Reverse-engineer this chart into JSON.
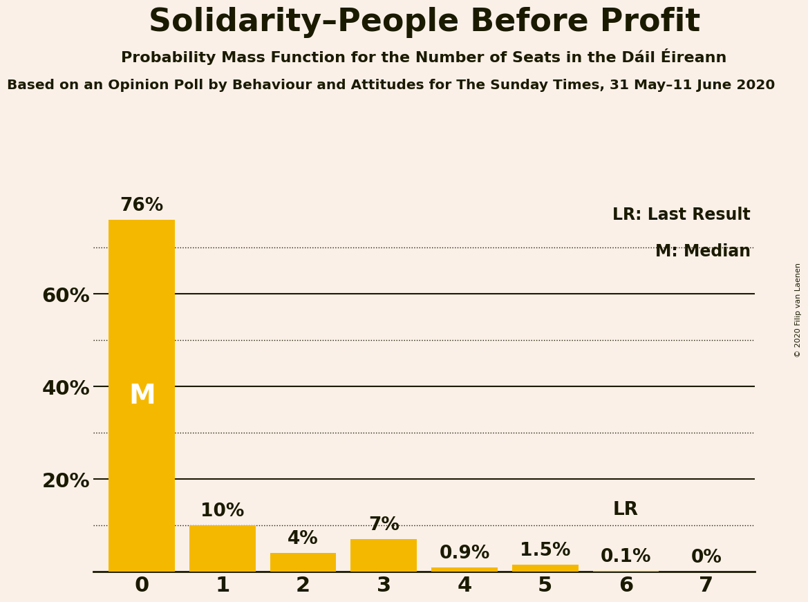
{
  "title": "Solidarity–People Before Profit",
  "subtitle": "Probability Mass Function for the Number of Seats in the Dáil Éireann",
  "sub2": "Based on an Opinion Poll by Behaviour and Attitudes for The Sunday Times, 31 May–11 June 2020",
  "copyright": "© 2020 Filip van Laenen",
  "categories": [
    0,
    1,
    2,
    3,
    4,
    5,
    6,
    7
  ],
  "values": [
    76,
    10,
    4,
    7,
    0.9,
    1.5,
    0.1,
    0
  ],
  "labels": [
    "76%",
    "10%",
    "4%",
    "7%",
    "0.9%",
    "1.5%",
    "0.1%",
    "0%"
  ],
  "bar_color": "#F5B800",
  "background_color": "#FAF0E8",
  "text_color": "#1a1a00",
  "ylim": [
    0,
    80
  ],
  "yticks": [
    20,
    40,
    60
  ],
  "ytick_labels": [
    "20%",
    "40%",
    "60%"
  ],
  "solid_lines": [
    20,
    40,
    60
  ],
  "dotted_lines": [
    10,
    30,
    50,
    70
  ],
  "legend_lr": "LR: Last Result",
  "legend_m": "M: Median",
  "median_label": "M",
  "lr_label": "LR"
}
